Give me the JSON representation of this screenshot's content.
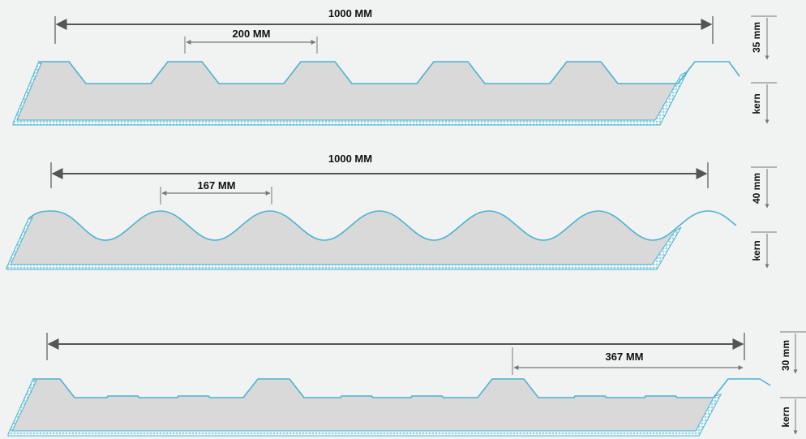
{
  "colors": {
    "background": "#f1f2f2",
    "profile_stroke": "#4db3cf",
    "profile_fill": "#d9d9d9",
    "dimension_line": "#555555",
    "text": "#111111"
  },
  "panels": [
    {
      "profile": "trapezoidal",
      "total_width_label": "1000 MM",
      "pitch_label": "200 MM",
      "height_label": "35 mm",
      "core_label": "kern"
    },
    {
      "profile": "sinusoidal",
      "total_width_label": "1000 MM",
      "pitch_label": "167 MM",
      "height_label": "40 mm",
      "core_label": "kern"
    },
    {
      "profile": "trapezoidal-wide",
      "pitch_label": "367 MM",
      "height_label": "30 mm",
      "core_label": "kern"
    }
  ]
}
